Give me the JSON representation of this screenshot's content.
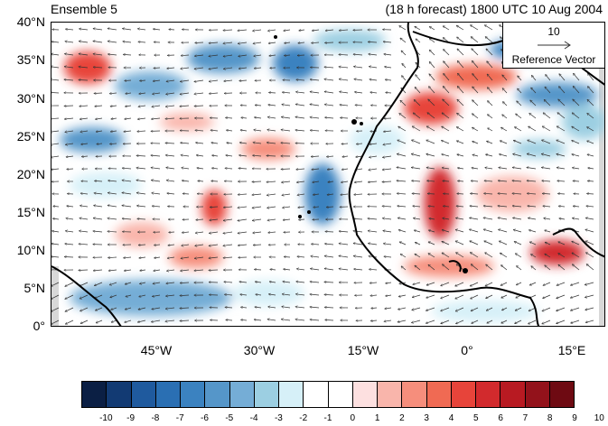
{
  "title": {
    "left": "Ensemble 5",
    "right": "(18 h forecast) 1800 UTC 10 Aug 2004"
  },
  "axes": {
    "y_labels": [
      "40°N",
      "35°N",
      "30°N",
      "25°N",
      "20°N",
      "15°N",
      "10°N",
      "5°N",
      "0°"
    ],
    "x_labels": [
      "45°W",
      "30°W",
      "15°W",
      "0°",
      "15°E"
    ]
  },
  "reference": {
    "magnitude": "10",
    "label": "Reference Vector"
  },
  "colorbar": {
    "labels": [
      "-10",
      "-9",
      "-8",
      "-7",
      "-6",
      "-5",
      "-4",
      "-3",
      "-2",
      "-1",
      "0",
      "1",
      "2",
      "3",
      "4",
      "5",
      "6",
      "7",
      "8",
      "9",
      "10"
    ],
    "colors": [
      "#0b1f44",
      "#123a73",
      "#1f5a9e",
      "#2a6fb3",
      "#3b82c0",
      "#5596c9",
      "#75add6",
      "#9ccfe2",
      "#d6f0f8",
      "#ffffff",
      "#ffffff",
      "#fde0e0",
      "#f9b5ab",
      "#f68e7c",
      "#f06a53",
      "#e7443a",
      "#d22a2d",
      "#b81a22",
      "#93121b",
      "#6e0a12"
    ]
  },
  "colors": {
    "land_outline": "#000000",
    "arrow": "#333333",
    "missing": "#d8d8d8"
  }
}
